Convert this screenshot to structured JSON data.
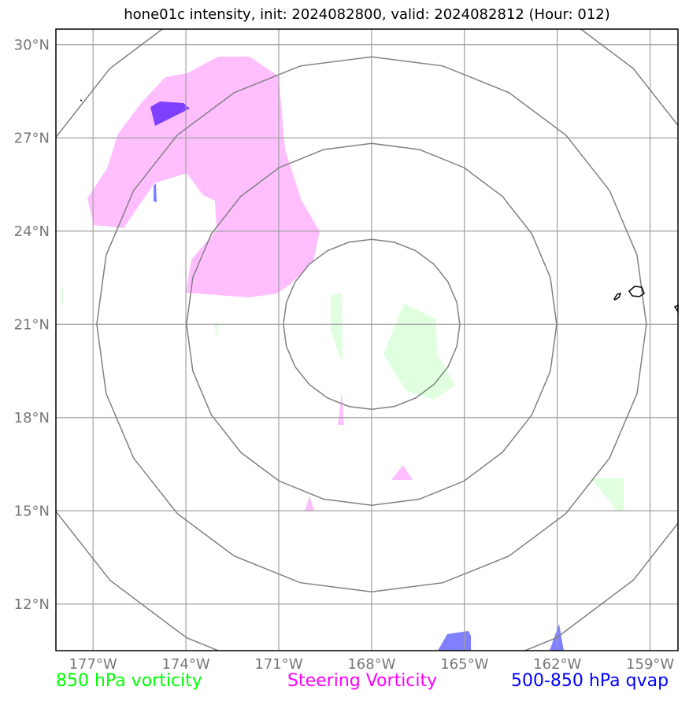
{
  "title": "hone01c intensity, init: 2024082800, valid: 2024082812 (Hour: 012)",
  "map": {
    "lon_range": [
      -178.2,
      -158.1
    ],
    "lat_range": [
      10.5,
      30.5
    ],
    "lon_ticks": [
      {
        "value": -177,
        "label": "177°W"
      },
      {
        "value": -174,
        "label": "174°W"
      },
      {
        "value": -171,
        "label": "171°W"
      },
      {
        "value": -168,
        "label": "168°W"
      },
      {
        "value": -165,
        "label": "165°W"
      },
      {
        "value": -162,
        "label": "162°W"
      },
      {
        "value": -159,
        "label": "159°W"
      }
    ],
    "lat_ticks": [
      {
        "value": 30,
        "label": "30°N"
      },
      {
        "value": 27,
        "label": "27°N"
      },
      {
        "value": 24,
        "label": "24°N"
      },
      {
        "value": 21,
        "label": "21°N"
      },
      {
        "value": 18,
        "label": "18°N"
      },
      {
        "value": 15,
        "label": "15°N"
      },
      {
        "value": 12,
        "label": "12°N"
      }
    ],
    "grid": true,
    "range_rings_center": {
      "lon": -168,
      "lat": 21
    }
  },
  "legend": {
    "vorticity_850": {
      "label": "850 hPa vorticity",
      "color": "#00ff00"
    },
    "steering": {
      "label": "Steering Vorticity",
      "color": "#ff00ff"
    },
    "qvap": {
      "label": "500-850 hPa qvap",
      "color": "#0000ff"
    }
  },
  "colors": {
    "steering_fill": "#ffbfff",
    "vort850_fill": "#dfffdf",
    "qvap_fill": "#8080ff",
    "qvap_dark": "#7f3fff",
    "ring": "#808080",
    "grid": "#a0a0a0",
    "coast": "#000000"
  }
}
